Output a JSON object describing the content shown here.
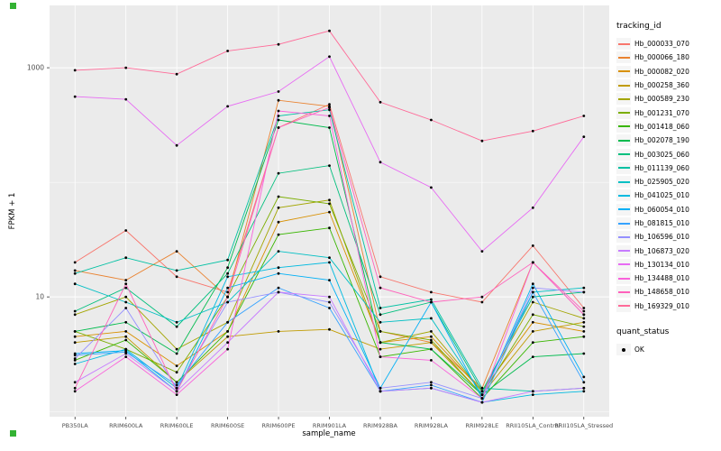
{
  "chart_data": {
    "type": "line",
    "title": "",
    "xlabel": "sample_name",
    "ylabel": "FPKM + 1",
    "y_scale": "log10",
    "ylim": [
      0.9,
      3500
    ],
    "y_ticks": [
      10,
      1000
    ],
    "y_minor": [
      1,
      100
    ],
    "grid": true,
    "legend_position": "right",
    "categories": [
      "PB350LA",
      "RRIM600LA",
      "RRIM600LE",
      "RRIM600SE",
      "RRIM600PE",
      "RRIM901LA",
      "RRIM928BA",
      "RRIM928LA",
      "RRIM928LE",
      "RRII105LA_Control",
      "RRII105LA_Stressed"
    ],
    "series": [
      {
        "name": "Hb_000033_070",
        "color": "#F8766D",
        "values": [
          20,
          38,
          15,
          11,
          300,
          480,
          15,
          11,
          9,
          28,
          8
        ]
      },
      {
        "name": "Hb_000066_180",
        "color": "#EA8331",
        "values": [
          17,
          14,
          25,
          10,
          520,
          460,
          5,
          4,
          1.6,
          20,
          7
        ]
      },
      {
        "name": "Hb_000082_020",
        "color": "#D89000",
        "values": [
          4.5,
          5,
          2.5,
          5,
          45,
          55,
          4,
          4.5,
          1.5,
          6,
          5
        ]
      },
      {
        "name": "Hb_000258_360",
        "color": "#C09B00",
        "values": [
          4,
          4.5,
          1.8,
          4.5,
          5,
          5.2,
          3.5,
          4,
          1.4,
          5,
          6
        ]
      },
      {
        "name": "Hb_000589_230",
        "color": "#A3A500",
        "values": [
          7,
          10,
          3.5,
          6,
          60,
          70,
          4,
          5,
          1.5,
          9,
          6.5
        ]
      },
      {
        "name": "Hb_001231_070",
        "color": "#7CAE00",
        "values": [
          5,
          3.5,
          2.2,
          10,
          75,
          65,
          5,
          4.2,
          1.4,
          7,
          5.5
        ]
      },
      {
        "name": "Hb_001418_060",
        "color": "#39B600",
        "values": [
          2.8,
          4.2,
          1.8,
          5,
          35,
          40,
          3,
          3.5,
          1.3,
          4,
          4.5
        ]
      },
      {
        "name": "Hb_002078_190",
        "color": "#00BB4E",
        "values": [
          5,
          6,
          3.2,
          18,
          350,
          300,
          4,
          3.5,
          1.4,
          3,
          3.2
        ]
      },
      {
        "name": "Hb_003025_060",
        "color": "#00BF7D",
        "values": [
          7.5,
          12,
          5.5,
          16,
          120,
          140,
          7,
          9,
          1.5,
          10,
          11
        ]
      },
      {
        "name": "Hb_011139_060",
        "color": "#00C1A3",
        "values": [
          16,
          22,
          17,
          21,
          380,
          430,
          8,
          9.5,
          1.6,
          1.5,
          1.6
        ]
      },
      {
        "name": "Hb_025905_020",
        "color": "#00BFC4",
        "values": [
          13,
          9,
          6,
          9,
          25,
          22,
          6,
          6.5,
          1.4,
          11,
          12
        ]
      },
      {
        "name": "Hb_041025_010",
        "color": "#00BAE0",
        "values": [
          2.6,
          3.5,
          1.6,
          15,
          18,
          20,
          1.5,
          1.6,
          1.2,
          1.4,
          1.5
        ]
      },
      {
        "name": "Hb_060054_010",
        "color": "#00B0F6",
        "values": [
          3.2,
          3.4,
          1.5,
          12,
          16,
          14,
          1.6,
          9,
          1.3,
          13,
          2
        ]
      },
      {
        "name": "Hb_081815_010",
        "color": "#35A2FF",
        "values": [
          3.1,
          3.3,
          1.7,
          6,
          12,
          8,
          1.5,
          1.7,
          1.2,
          11,
          1.8
        ]
      },
      {
        "name": "Hb_106596_010",
        "color": "#9590FF",
        "values": [
          2.9,
          8,
          1.6,
          9,
          11,
          9,
          1.6,
          1.8,
          1.3,
          12,
          11
        ]
      },
      {
        "name": "Hb_106873_020",
        "color": "#C77CFF",
        "values": [
          1.8,
          3.2,
          1.5,
          4,
          11,
          10,
          1.5,
          1.6,
          1.2,
          1.5,
          1.6
        ]
      },
      {
        "name": "Hb_130134_010",
        "color": "#E76BF3",
        "values": [
          560,
          530,
          210,
          460,
          620,
          1250,
          150,
          90,
          25,
          60,
          250
        ]
      },
      {
        "name": "Hb_134488_010",
        "color": "#FA62DB",
        "values": [
          1.5,
          3,
          1.4,
          3.5,
          420,
          380,
          3,
          2.8,
          1.3,
          20,
          7
        ]
      },
      {
        "name": "Hb_148658_010",
        "color": "#FF62BC",
        "values": [
          1.6,
          13,
          1.5,
          10,
          300,
          450,
          12,
          9,
          10,
          20,
          7.5
        ]
      },
      {
        "name": "Hb_169329_010",
        "color": "#FF6A98",
        "values": [
          950,
          1000,
          880,
          1400,
          1600,
          2100,
          500,
          350,
          230,
          280,
          380
        ]
      }
    ],
    "legend": {
      "tracking_title": "tracking_id",
      "quant_title": "quant_status",
      "quant_value": "OK"
    }
  },
  "panel": {
    "bg": "#EBEBEB",
    "grid": "#FFFFFF",
    "tick_color": "#333333",
    "label_color": "#4D4D4D"
  },
  "decor": {
    "handle_color": "#33B233"
  }
}
